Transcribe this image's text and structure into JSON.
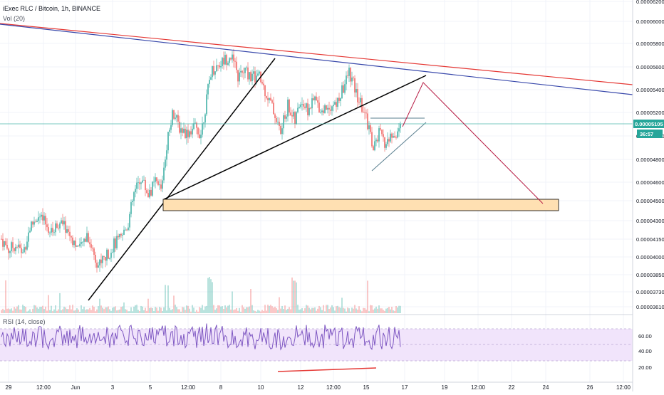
{
  "legend": {
    "title": "iExec RLC / Bitcoin, 1h, BINANCE",
    "volume_label": "Vol (20)",
    "rsi_label": "RSI (14, close)"
  },
  "price_tag": {
    "value": "0.00005105",
    "countdown": "36:57"
  },
  "colors": {
    "up": "#26a69a",
    "down": "#ef5350",
    "rsi_line": "#7e57c2",
    "rsi_band": "#f1e4fb",
    "zone_fill": "#ffe0b2",
    "upper_red_line": "#e53935",
    "upper_blue_line": "#3949ab",
    "projection": "#b71c44",
    "triangle": "#5a7f8f",
    "current_price": "#4db6ac"
  },
  "chart_data": [
    {
      "type": "candlestick",
      "title": "iExec RLC / Bitcoin, 1h, BINANCE",
      "y_ticks": [
        "0.00006200",
        "0.00006000",
        "0.00005800",
        "0.00005600",
        "0.00005400",
        "0.00005200",
        "0.00005000",
        "0.00004800",
        "0.00004600",
        "0.00004500",
        "0.00004300",
        "0.00004150",
        "0.00004000",
        "0.00003850",
        "0.00003730",
        "0.00003610"
      ],
      "x_ticks": [
        "29",
        "12:00",
        "Jun",
        "3",
        "5",
        "12:00",
        "8",
        "10",
        "12",
        "12:00",
        "15",
        "17",
        "19",
        "12:00",
        "22",
        "24",
        "26",
        "12:00"
      ],
      "current_price": 5.105e-05,
      "zones": [
        {
          "label": "",
          "from": 4.43e-05,
          "to": 4.53e-05
        }
      ],
      "annotations": [
        "descending red trendline",
        "descending blue trendline",
        "black support trendlines",
        "symmetrical triangle",
        "projected breakout then drop to zone"
      ]
    },
    {
      "type": "line",
      "title": "RSI (14, close)",
      "y_ticks": [
        "60.00",
        "40.00",
        "20.00"
      ],
      "band": [
        30,
        70
      ],
      "annotations": [
        "bullish divergence line at lows"
      ]
    }
  ]
}
